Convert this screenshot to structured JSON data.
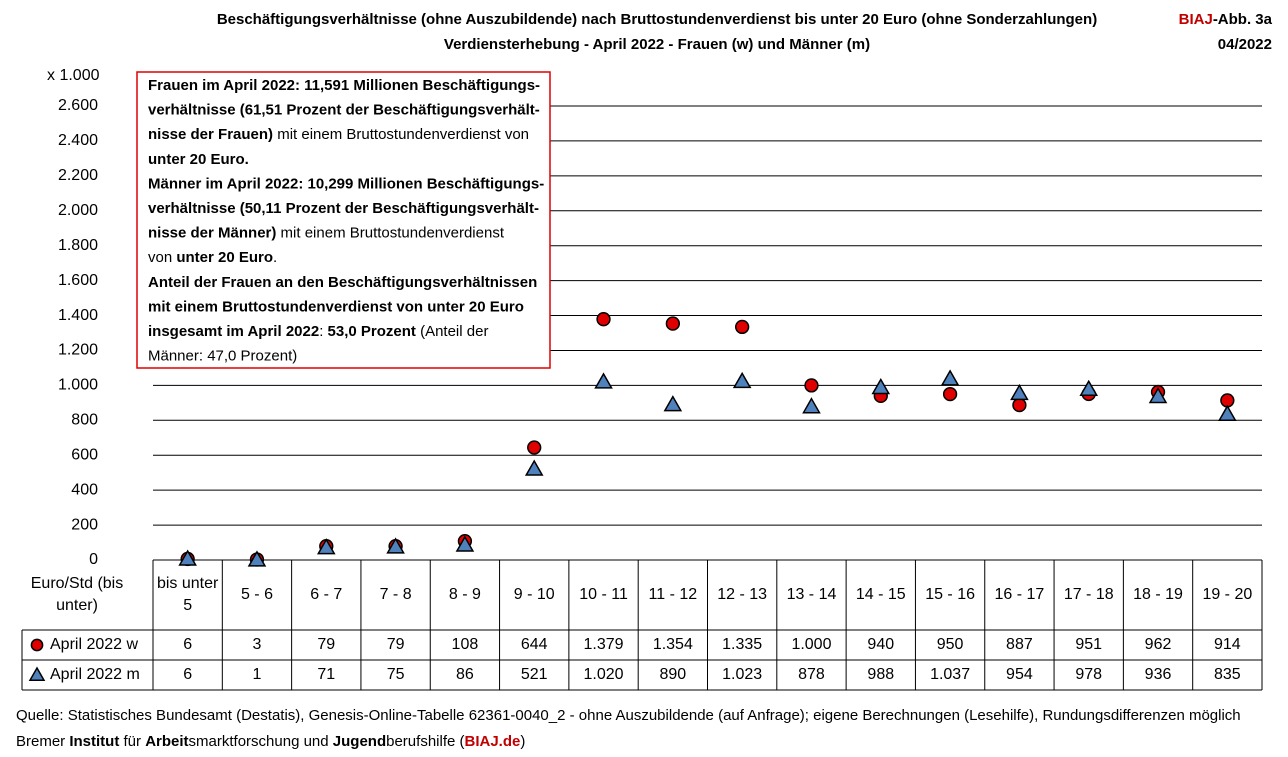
{
  "chart_data": {
    "type": "scatter",
    "title": "Beschäftigungsverhältnisse (ohne Auszubildende) nach Bruttostundenverdienst bis unter 20 Euro (ohne Sonderzahlungen)",
    "subtitle": "Verdiensterhebung - April 2022 - Frauen (w) und Männer (m)",
    "badge": [
      {
        "text": "BIAJ",
        "color": "#c00000"
      },
      {
        "text": "-Abb. 3a"
      }
    ],
    "date": "04/2022",
    "y_unit": "x 1.000",
    "x_label": "Euro/Std (bis unter)",
    "categories": [
      "bis unter 5",
      "5 - 6",
      "6 - 7",
      "7 - 8",
      "8 - 9",
      "9 - 10",
      "10 - 11",
      "11 - 12",
      "12 - 13",
      "13 - 14",
      "14 - 15",
      "15 - 16",
      "16 - 17",
      "17 - 18",
      "18 - 19",
      "19 - 20"
    ],
    "series": [
      {
        "name": "April 2022 w",
        "color": "#e00000",
        "marker": "circle",
        "values": [
          6,
          3,
          79,
          79,
          108,
          644,
          1379,
          1354,
          1335,
          1000,
          940,
          950,
          887,
          951,
          962,
          914
        ],
        "value_labels": [
          "6",
          "3",
          "79",
          "79",
          "108",
          "644",
          "1.379",
          "1.354",
          "1.335",
          "1.000",
          "940",
          "950",
          "887",
          "951",
          "962",
          "914"
        ]
      },
      {
        "name": "April 2022 m",
        "color": "#4f81bd",
        "marker": "triangle",
        "values": [
          6,
          1,
          71,
          75,
          86,
          521,
          1020,
          890,
          1023,
          878,
          988,
          1037,
          954,
          978,
          936,
          835
        ],
        "value_labels": [
          "6",
          "1",
          "71",
          "75",
          "86",
          "521",
          "1.020",
          "890",
          "1.023",
          "878",
          "988",
          "1.037",
          "954",
          "978",
          "936",
          "835"
        ]
      }
    ],
    "ylim": [
      0,
      2600
    ],
    "yticks": [
      0,
      200,
      400,
      600,
      800,
      {
        "value": 1000,
        "label": "1.000"
      },
      {
        "value": 1200,
        "label": "1.200"
      },
      {
        "value": 1400,
        "label": "1.400"
      },
      {
        "value": 1600,
        "label": "1.600"
      },
      {
        "value": 1800,
        "label": "1.800"
      },
      {
        "value": 2000,
        "label": "2.000"
      },
      {
        "value": 2200,
        "label": "2.200"
      },
      {
        "value": 2400,
        "label": "2.400"
      },
      {
        "value": 2600,
        "label": "2.600"
      }
    ],
    "grid": true,
    "annotation": [
      [
        {
          "text": "Frauen im April 2022: 11,591 Millionen Beschäftigungs-",
          "bold": true
        }
      ],
      [
        {
          "text": "verhältnisse (61,51 Prozent der Beschäftigungsverhält-",
          "bold": true
        }
      ],
      [
        {
          "text": "nisse der Frauen)",
          "bold": true
        },
        {
          "text": " mit einem Bruttostundenverdienst von"
        }
      ],
      [
        {
          "text": "unter 20 Euro.",
          "bold": true
        }
      ],
      [
        {
          "text": "Männer im April 2022: 10,299 Millionen Beschäftigungs-",
          "bold": true
        }
      ],
      [
        {
          "text": "verhältnisse (50,11 Prozent der Beschäftigungsverhält-",
          "bold": true
        }
      ],
      [
        {
          "text": "nisse der Männer)",
          "bold": true
        },
        {
          "text": " mit einem Bruttostundenverdienst"
        }
      ],
      [
        {
          "text": "von "
        },
        {
          "text": "unter 20 Euro",
          "bold": true
        },
        {
          "text": "."
        }
      ],
      [
        {
          "text": "Anteil der Frauen an den Beschäftigungsverhältnissen",
          "bold": true
        }
      ],
      [
        {
          "text": "mit einem Bruttostundenverdienst von unter 20 Euro",
          "bold": true
        }
      ],
      [
        {
          "text": "insgesamt im April 2022",
          "bold": true
        },
        {
          "text": ": "
        },
        {
          "text": "53,0 Prozent",
          "bold": true
        },
        {
          "text": " (Anteil der"
        }
      ],
      [
        {
          "text": "Männer: 47,0 Prozent)"
        }
      ]
    ],
    "footer": [
      [
        {
          "text": "Quelle: Statistisches Bundesamt (Destatis), Genesis-Online-Tabelle 62361-0040_2 - ohne Auszubildende (auf Anfrage); eigene Berechnungen (Lesehilfe), Rundungsdifferenzen möglich"
        }
      ],
      [
        {
          "text": "Bremer "
        },
        {
          "text": "Institut",
          "bold": true
        },
        {
          "text": " für "
        },
        {
          "text": "Arbeit",
          "bold": true
        },
        {
          "text": "smarktforschung und "
        },
        {
          "text": "Jugend",
          "bold": true
        },
        {
          "text": "berufshilfe ("
        },
        {
          "text": "BIAJ.de",
          "bold": true,
          "color": "#c00000"
        },
        {
          "text": ")"
        }
      ]
    ]
  }
}
